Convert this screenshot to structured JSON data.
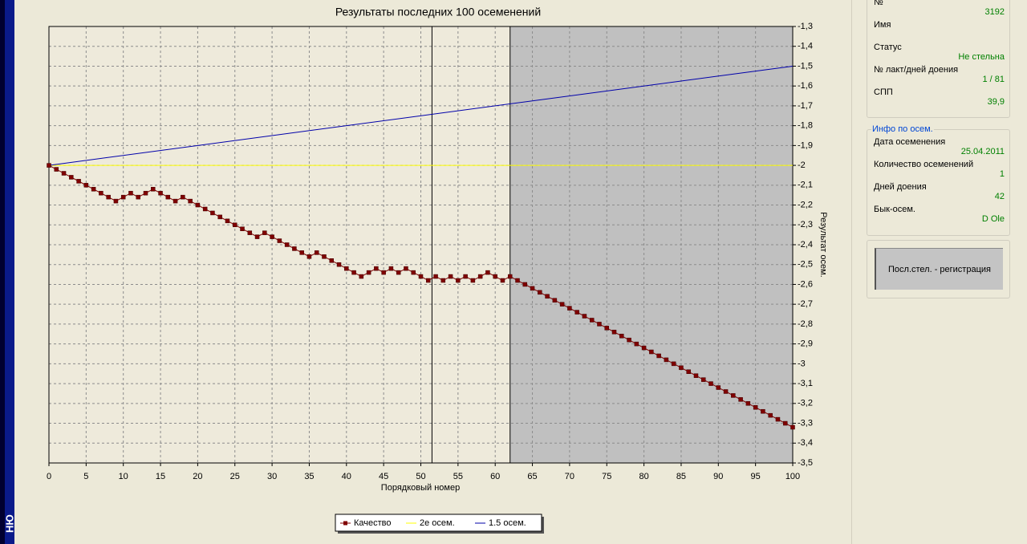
{
  "sidebar_label": "НЮ",
  "chart_data": {
    "type": "line",
    "title": "Результаты последних 100 осеменений",
    "x_label": "Порядковый номер",
    "y_label": "Результат осем.",
    "xlim": [
      0,
      100
    ],
    "xticks": [
      0,
      5,
      10,
      15,
      20,
      25,
      30,
      35,
      40,
      45,
      50,
      55,
      60,
      65,
      70,
      75,
      80,
      85,
      90,
      95,
      100
    ],
    "ylim": [
      -3.5,
      -1.3
    ],
    "yticks": [
      {
        "value": -1.3,
        "label": "-1,3"
      },
      {
        "value": -1.4,
        "label": "-1,4"
      },
      {
        "value": -1.5,
        "label": "-1,5"
      },
      {
        "value": -1.6,
        "label": "-1,6"
      },
      {
        "value": -1.7,
        "label": "-1,7"
      },
      {
        "value": -1.8,
        "label": "-1,8"
      },
      {
        "value": -1.9,
        "label": "-1,9"
      },
      -2,
      {
        "value": -2.1,
        "label": "-2,1"
      },
      {
        "value": -2.2,
        "label": "-2,2"
      },
      {
        "value": -2.3,
        "label": "-2,3"
      },
      {
        "value": -2.4,
        "label": "-2,4"
      },
      {
        "value": -2.5,
        "label": "-2,5"
      },
      {
        "value": -2.6,
        "label": "-2,6"
      },
      {
        "value": -2.7,
        "label": "-2,7"
      },
      {
        "value": -2.8,
        "label": "-2,8"
      },
      {
        "value": -2.9,
        "label": "-2,9"
      },
      -3,
      {
        "value": -3.1,
        "label": "-3,1"
      },
      {
        "value": -3.2,
        "label": "-3,2"
      },
      {
        "value": -3.3,
        "label": "-3,3"
      },
      {
        "value": -3.4,
        "label": "-3,4"
      },
      {
        "value": -3.5,
        "label": "-3,5"
      }
    ],
    "grid": true,
    "vlines": [
      51.5,
      62
    ],
    "shade_from": 62,
    "series": [
      {
        "name": "Качество",
        "color": "#800000",
        "markers": true,
        "x": [
          0,
          1,
          2,
          3,
          4,
          5,
          6,
          7,
          8,
          9,
          10,
          11,
          12,
          13,
          14,
          15,
          16,
          17,
          18,
          19,
          20,
          21,
          22,
          23,
          24,
          25,
          26,
          27,
          28,
          29,
          30,
          31,
          32,
          33,
          34,
          35,
          36,
          37,
          38,
          39,
          40,
          41,
          42,
          43,
          44,
          45,
          46,
          47,
          48,
          49,
          50,
          51,
          52,
          53,
          54,
          55,
          56,
          57,
          58,
          59,
          60,
          61,
          62,
          63,
          64,
          65,
          66,
          67,
          68,
          69,
          70,
          71,
          72,
          73,
          74,
          75,
          76,
          77,
          78,
          79,
          80,
          81,
          82,
          83,
          84,
          85,
          86,
          87,
          88,
          89,
          90,
          91,
          92,
          93,
          94,
          95,
          96,
          97,
          98,
          99,
          100
        ],
        "values": [
          -2.0,
          -2.02,
          -2.04,
          -2.06,
          -2.08,
          -2.1,
          -2.12,
          -2.14,
          -2.16,
          -2.18,
          -2.16,
          -2.14,
          -2.16,
          -2.14,
          -2.12,
          -2.14,
          -2.16,
          -2.18,
          -2.16,
          -2.18,
          -2.2,
          -2.22,
          -2.24,
          -2.26,
          -2.28,
          -2.3,
          -2.32,
          -2.34,
          -2.36,
          -2.34,
          -2.36,
          -2.38,
          -2.4,
          -2.42,
          -2.44,
          -2.46,
          -2.44,
          -2.46,
          -2.48,
          -2.5,
          -2.52,
          -2.54,
          -2.56,
          -2.54,
          -2.52,
          -2.54,
          -2.52,
          -2.54,
          -2.52,
          -2.54,
          -2.56,
          -2.58,
          -2.56,
          -2.58,
          -2.56,
          -2.58,
          -2.56,
          -2.58,
          -2.56,
          -2.54,
          -2.56,
          -2.58,
          -2.56,
          -2.58,
          -2.6,
          -2.62,
          -2.64,
          -2.66,
          -2.68,
          -2.7,
          -2.72,
          -2.74,
          -2.76,
          -2.78,
          -2.8,
          -2.82,
          -2.84,
          -2.86,
          -2.88,
          -2.9,
          -2.92,
          -2.94,
          -2.96,
          -2.98,
          -3.0,
          -3.02,
          -3.04,
          -3.06,
          -3.08,
          -3.1,
          -3.12,
          -3.14,
          -3.16,
          -3.18,
          -3.2,
          -3.22,
          -3.24,
          -3.26,
          -3.28,
          -3.3,
          -3.32
        ]
      },
      {
        "name": "2е осем.",
        "color": "#ffff00",
        "markers": false,
        "x": [
          0,
          100
        ],
        "values": [
          -2.0,
          -2.0
        ]
      },
      {
        "name": "1.5 осем.",
        "color": "#0000aa",
        "markers": false,
        "x": [
          0,
          100
        ],
        "values": [
          -2.0,
          -1.5
        ]
      }
    ]
  },
  "side": {
    "fields": [
      {
        "label": "№",
        "value": "3192"
      },
      {
        "label": "Имя"
      },
      {
        "label": "Статус",
        "value": "Не стельна"
      },
      {
        "label": "№ лакт/дней доения",
        "value": "1 / 81"
      },
      {
        "label": "СПП",
        "value": "39,9"
      }
    ],
    "group_title": "Инфо по осем.",
    "group_fields": [
      {
        "label": "Дата осеменения",
        "value": "25.04.2011"
      },
      {
        "label": "Количество осеменений",
        "value": "1"
      },
      {
        "label": "Дней доения",
        "value": "42"
      },
      {
        "label": "Бык-осем.",
        "value": "D Ole"
      }
    ],
    "button": "Посл.стел. - регистрация"
  }
}
